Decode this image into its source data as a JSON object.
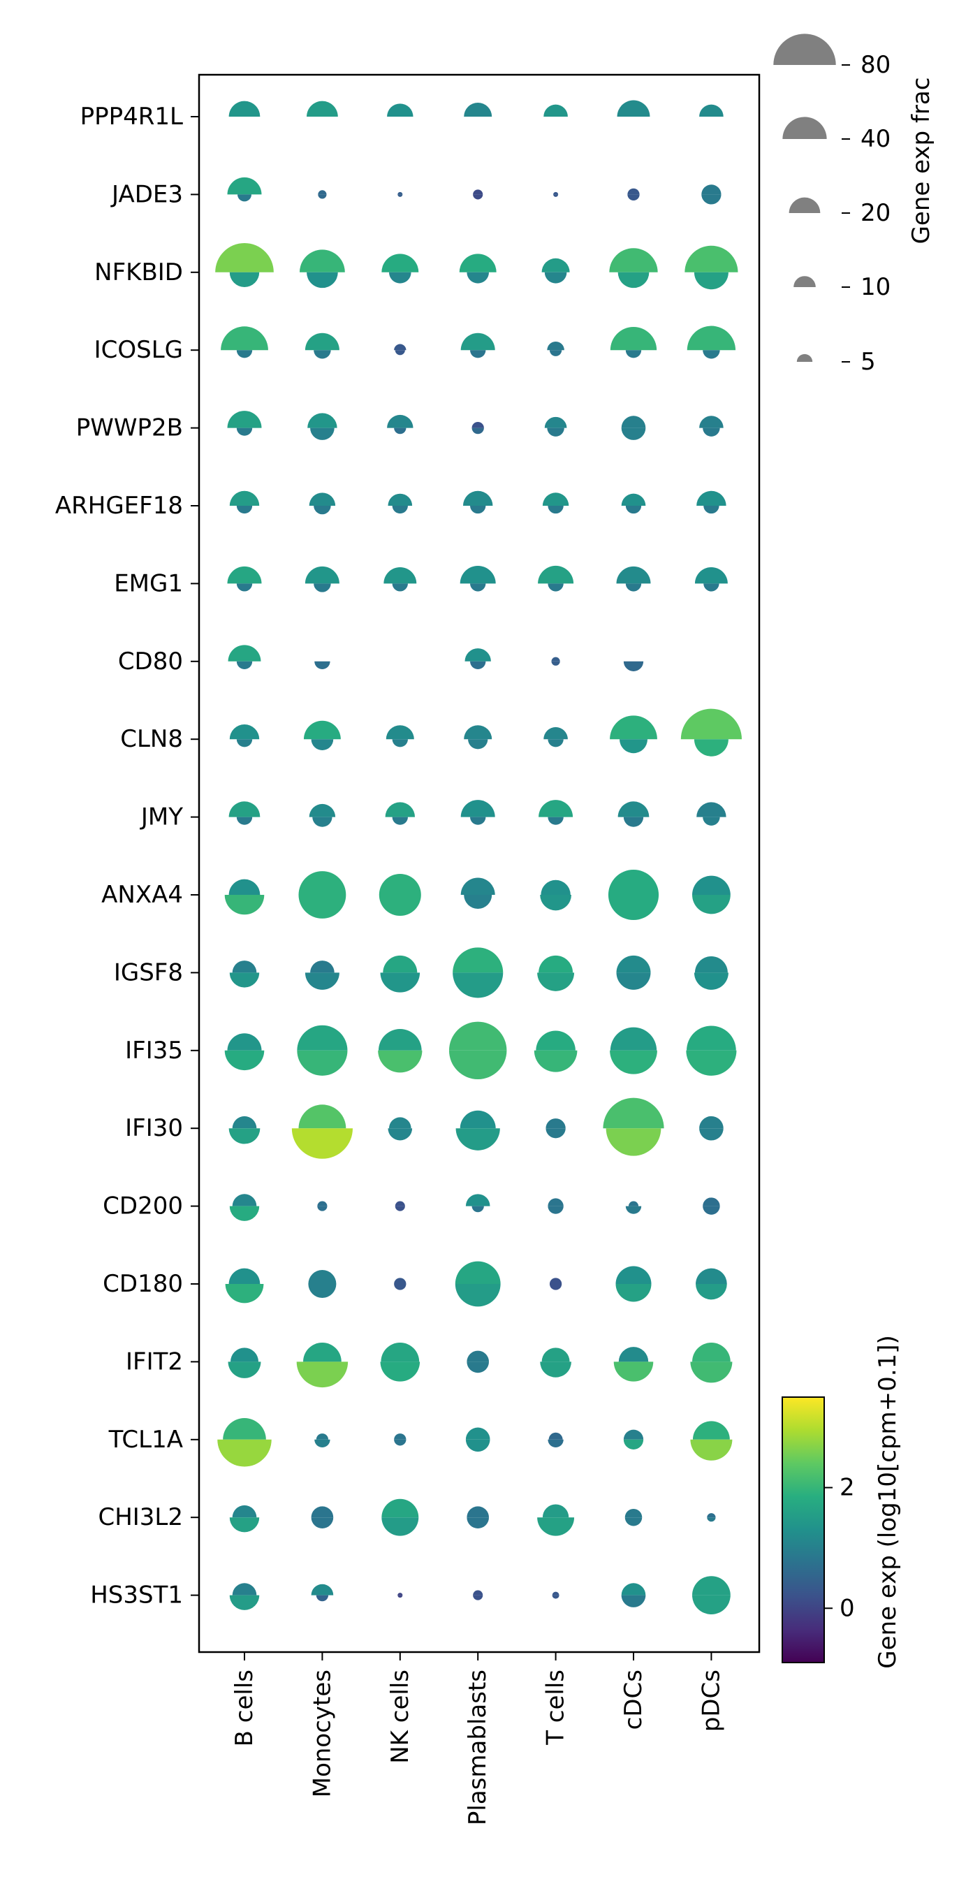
{
  "chart_data": {
    "type": "dotplot",
    "x_categories": [
      "B cells",
      "Monocytes",
      "NK cells",
      "Plasmablasts",
      "T cells",
      "cDCs",
      "pDCs"
    ],
    "y_categories": [
      "PPP4R1L",
      "JADE3",
      "NFKBID",
      "ICOSLG",
      "PWWP2B",
      "ARHGEF18",
      "EMG1",
      "CD80",
      "CLN8",
      "JMY",
      "ANXA4",
      "IGSF8",
      "IFI35",
      "IFI30",
      "CD200",
      "CD180",
      "IFIT2",
      "TCL1A",
      "CHI3L2",
      "HS3ST1"
    ],
    "upper_half": {
      "frac": [
        [
          20,
          20,
          14,
          16,
          12,
          22,
          12
        ],
        [
          24,
          1.5,
          0.5,
          2,
          0.5,
          3,
          8
        ],
        [
          70,
          42,
          28,
          28,
          16,
          48,
          58
        ],
        [
          46,
          24,
          3,
          24,
          6,
          44,
          48
        ],
        [
          24,
          18,
          14,
          3,
          10,
          12,
          12
        ],
        [
          18,
          14,
          12,
          18,
          14,
          12,
          18
        ],
        [
          24,
          24,
          22,
          26,
          26,
          24,
          22
        ],
        [
          22,
          0,
          0,
          14,
          1.5,
          0,
          0
        ],
        [
          18,
          28,
          16,
          16,
          12,
          46,
          76
        ],
        [
          20,
          14,
          18,
          24,
          24,
          20,
          18
        ],
        [
          20,
          46,
          36,
          24,
          18,
          52,
          30
        ],
        [
          12,
          12,
          24,
          52,
          24,
          24,
          22
        ],
        [
          24,
          52,
          38,
          68,
          32,
          44,
          50
        ],
        [
          12,
          46,
          10,
          26,
          8,
          76,
          12
        ],
        [
          12,
          2,
          2,
          12,
          5,
          2,
          6
        ],
        [
          20,
          16,
          3,
          42,
          3,
          26,
          20
        ],
        [
          16,
          30,
          30,
          10,
          16,
          18,
          30
        ],
        [
          38,
          3,
          3,
          12,
          4,
          8,
          28
        ],
        [
          12,
          10,
          28,
          10,
          14,
          6,
          1.5
        ],
        [
          12,
          10,
          0.5,
          2,
          1,
          12,
          30
        ]
      ],
      "exp": [
        [
          1.4,
          1.5,
          1.3,
          1.1,
          1.4,
          1.2,
          1.2
        ],
        [
          1.7,
          0.6,
          0.4,
          0.1,
          0.3,
          0.3,
          0.9
        ],
        [
          2.6,
          2.0,
          1.8,
          1.8,
          1.5,
          2.1,
          2.2
        ],
        [
          2.0,
          1.6,
          0.3,
          1.5,
          0.9,
          2.0,
          2.0
        ],
        [
          1.6,
          1.4,
          1.1,
          0.2,
          1.1,
          1.0,
          1.0
        ],
        [
          1.5,
          1.2,
          1.2,
          1.2,
          1.4,
          1.3,
          1.3
        ],
        [
          1.7,
          1.4,
          1.4,
          1.3,
          1.6,
          1.2,
          1.3
        ],
        [
          1.7,
          0,
          0,
          1.3,
          0.4,
          0,
          0
        ],
        [
          1.3,
          1.8,
          1.2,
          1.1,
          1.1,
          1.9,
          2.4
        ],
        [
          1.6,
          1.2,
          1.6,
          1.3,
          1.7,
          1.2,
          1.0
        ],
        [
          1.3,
          1.9,
          1.9,
          1.1,
          1.3,
          1.8,
          1.3
        ],
        [
          1.0,
          0.9,
          1.7,
          1.9,
          1.8,
          1.2,
          1.2
        ],
        [
          1.4,
          1.7,
          1.6,
          2.1,
          1.8,
          1.5,
          1.8
        ],
        [
          1.1,
          2.3,
          1.1,
          1.3,
          0.9,
          2.2,
          1.0
        ],
        [
          1.1,
          0.7,
          0.2,
          1.3,
          0.8,
          0.8,
          0.7
        ],
        [
          1.3,
          1.0,
          0.3,
          1.7,
          0.2,
          1.3,
          1.2
        ],
        [
          1.3,
          1.7,
          1.7,
          0.9,
          1.6,
          1.2,
          2.0
        ],
        [
          2.0,
          0.9,
          0.8,
          1.3,
          0.6,
          1.0,
          1.9
        ],
        [
          1.1,
          0.8,
          1.7,
          0.8,
          1.5,
          0.9,
          0.7
        ],
        [
          1.0,
          1.2,
          0.0,
          0.2,
          0.3,
          1.3,
          1.6
        ]
      ]
    },
    "lower_half": {
      "frac": [
        [
          0,
          0,
          0,
          0,
          0,
          0,
          0
        ],
        [
          4,
          1.5,
          0.5,
          2,
          0.5,
          3,
          8
        ],
        [
          18,
          20,
          10,
          10,
          10,
          20,
          24
        ],
        [
          5,
          6,
          2,
          5,
          3,
          5,
          6
        ],
        [
          5,
          12,
          3,
          3,
          6,
          12,
          6
        ],
        [
          5,
          6,
          5,
          5,
          5,
          5,
          5
        ],
        [
          5,
          6,
          5,
          5,
          5,
          5,
          5
        ],
        [
          5,
          5,
          0,
          5,
          1.5,
          8,
          0
        ],
        [
          5,
          10,
          5,
          8,
          5,
          16,
          24
        ],
        [
          5,
          8,
          5,
          5,
          5,
          8,
          6
        ],
        [
          32,
          46,
          36,
          16,
          20,
          52,
          30
        ],
        [
          18,
          24,
          32,
          52,
          28,
          24,
          24
        ],
        [
          32,
          52,
          40,
          68,
          38,
          46,
          52
        ],
        [
          20,
          76,
          12,
          40,
          8,
          62,
          12
        ],
        [
          18,
          2,
          2,
          3,
          5,
          5,
          6
        ],
        [
          30,
          16,
          3,
          42,
          3,
          26,
          20
        ],
        [
          22,
          54,
          32,
          10,
          20,
          32,
          36
        ],
        [
          60,
          5,
          3,
          12,
          5,
          8,
          36
        ],
        [
          18,
          10,
          28,
          10,
          28,
          6,
          1.5
        ],
        [
          18,
          3,
          0.5,
          2,
          1,
          12,
          30
        ]
      ],
      "exp": [
        [
          0,
          0,
          0,
          0,
          0,
          0,
          0
        ],
        [
          0.9,
          0.6,
          0.4,
          0.1,
          0.3,
          0.3,
          0.9
        ],
        [
          1.5,
          1.3,
          1.1,
          1.1,
          1.1,
          1.6,
          1.6
        ],
        [
          0.9,
          0.9,
          0.3,
          0.8,
          0.8,
          0.9,
          0.9
        ],
        [
          0.9,
          1.0,
          0.7,
          0.6,
          0.9,
          1.0,
          0.9
        ],
        [
          0.9,
          0.9,
          0.9,
          0.9,
          0.9,
          0.9,
          0.9
        ],
        [
          0.9,
          0.9,
          0.9,
          0.9,
          0.9,
          0.9,
          0.9
        ],
        [
          0.9,
          0.7,
          0,
          0.7,
          0.4,
          0.6,
          0
        ],
        [
          1.0,
          1.1,
          1.0,
          1.0,
          1.0,
          1.4,
          1.9
        ],
        [
          0.9,
          1.0,
          0.9,
          0.9,
          0.9,
          0.9,
          1.0
        ],
        [
          2.0,
          1.9,
          1.9,
          1.0,
          1.4,
          1.8,
          1.6
        ],
        [
          1.4,
          1.1,
          1.4,
          1.5,
          1.6,
          1.1,
          1.3
        ],
        [
          1.8,
          2.0,
          2.2,
          2.1,
          2.0,
          1.9,
          1.9
        ],
        [
          1.6,
          3.0,
          1.1,
          1.5,
          0.9,
          2.6,
          1.0
        ],
        [
          1.8,
          0.7,
          0.2,
          0.8,
          0.8,
          0.9,
          0.7
        ],
        [
          1.9,
          1.0,
          0.3,
          1.5,
          0.2,
          1.6,
          1.5
        ],
        [
          1.6,
          2.6,
          1.8,
          0.9,
          1.6,
          2.2,
          2.1
        ],
        [
          2.8,
          1.0,
          0.8,
          1.3,
          0.7,
          1.7,
          2.7
        ],
        [
          1.6,
          0.8,
          1.5,
          0.8,
          1.6,
          0.9,
          0.9
        ],
        [
          1.5,
          0.5,
          0.0,
          0.2,
          0.3,
          0.9,
          1.6
        ]
      ]
    },
    "size_legend": {
      "title": "Gene exp frac",
      "values": [
        80,
        40,
        20,
        10,
        5
      ],
      "labels": [
        "80",
        "40",
        "20",
        "10",
        "5"
      ]
    },
    "colorbar": {
      "title": "Gene exp (log10[cpm+0.1])",
      "range": [
        -0.9,
        3.5
      ],
      "ticks": [
        0,
        2
      ],
      "tick_labels": [
        "0",
        "2"
      ],
      "colormap": "viridis"
    },
    "legend_fill": "#808080"
  }
}
